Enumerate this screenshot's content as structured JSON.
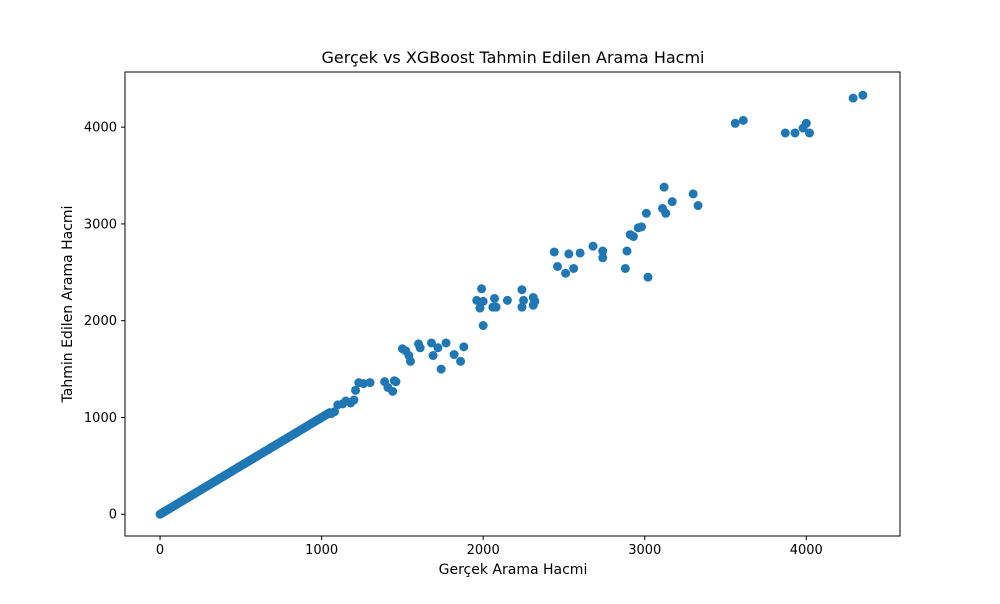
{
  "chart_data": {
    "type": "scatter",
    "title": "Gerçek vs XGBoost Tahmin Edilen Arama Hacmi",
    "xlabel": "Gerçek Arama Hacmi",
    "ylabel": "Tahmin Edilen Arama Hacmi",
    "xlim": [
      -217,
      4580
    ],
    "ylim": [
      -225,
      4570
    ],
    "xticks": [
      0,
      1000,
      2000,
      3000,
      4000
    ],
    "yticks": [
      0,
      1000,
      2000,
      3000,
      4000
    ],
    "xtick_labels": [
      "0",
      "1000",
      "2000",
      "3000",
      "4000"
    ],
    "ytick_labels": [
      "0",
      "1000",
      "2000",
      "3000",
      "4000"
    ],
    "grid": false,
    "legend": "none",
    "marker_color": "#1f77b4",
    "series": [
      {
        "x": [
          0,
          10,
          20,
          30,
          40,
          50,
          60,
          70,
          80,
          90,
          100,
          110,
          120,
          130,
          140,
          150,
          160,
          170,
          180,
          190,
          200,
          210,
          220,
          230,
          240,
          250,
          260,
          270,
          280,
          290,
          300,
          310,
          320,
          330,
          340,
          350,
          360,
          370,
          380,
          390,
          400,
          410,
          420,
          430,
          440,
          450,
          460,
          470,
          480,
          490,
          500,
          510,
          520,
          530,
          540,
          550,
          560,
          570,
          580,
          590,
          600,
          610,
          620,
          630,
          640,
          650,
          660,
          670,
          680,
          690,
          700,
          710,
          720,
          730,
          740,
          750,
          760,
          770,
          780,
          790,
          800,
          810,
          820,
          830,
          840,
          850,
          860,
          870,
          880,
          890,
          900,
          910,
          920,
          930,
          940,
          950,
          960,
          970,
          980,
          990,
          1000,
          1010,
          1020,
          1030,
          1040,
          1050,
          1060,
          1080,
          1100,
          1130,
          1150,
          1180,
          1200,
          1210,
          1230,
          1260,
          1300,
          1390,
          1410,
          1440,
          1450,
          1460,
          1500,
          1520,
          1540,
          1550,
          1600,
          1610,
          1680,
          1690,
          1720,
          1740,
          1770,
          1820,
          1860,
          1880,
          1960,
          1980,
          1990,
          2000,
          2000,
          2060,
          2070,
          2080,
          2150,
          2240,
          2240,
          2250,
          2310,
          2310,
          2320,
          2440,
          2460,
          2510,
          2530,
          2560,
          2600,
          2680,
          2740,
          2740,
          2880,
          2890,
          2910,
          2930,
          2960,
          2980,
          3010,
          3020,
          3110,
          3120,
          3130,
          3170,
          3300,
          3330,
          3560,
          3610,
          3870,
          3930,
          3980,
          4000,
          4020,
          4290,
          4350
        ],
        "y": [
          0,
          10,
          20,
          30,
          40,
          50,
          60,
          70,
          80,
          90,
          100,
          110,
          120,
          130,
          140,
          150,
          160,
          170,
          180,
          190,
          200,
          210,
          220,
          230,
          240,
          250,
          260,
          270,
          280,
          290,
          300,
          310,
          320,
          330,
          340,
          350,
          360,
          370,
          380,
          390,
          400,
          410,
          420,
          430,
          440,
          450,
          460,
          470,
          480,
          490,
          500,
          510,
          520,
          530,
          540,
          550,
          560,
          570,
          580,
          590,
          600,
          610,
          620,
          630,
          640,
          650,
          660,
          670,
          680,
          690,
          700,
          710,
          720,
          730,
          740,
          750,
          760,
          770,
          780,
          790,
          800,
          810,
          820,
          830,
          840,
          850,
          860,
          870,
          880,
          890,
          900,
          910,
          920,
          930,
          940,
          950,
          960,
          970,
          980,
          990,
          1000,
          1010,
          1020,
          1030,
          1040,
          1050,
          1040,
          1060,
          1130,
          1140,
          1170,
          1150,
          1180,
          1280,
          1360,
          1350,
          1360,
          1370,
          1310,
          1270,
          1380,
          1370,
          1710,
          1690,
          1640,
          1580,
          1760,
          1720,
          1770,
          1640,
          1720,
          1500,
          1770,
          1650,
          1580,
          1730,
          2210,
          2130,
          2330,
          1950,
          2200,
          2140,
          2230,
          2140,
          2210,
          2320,
          2140,
          2210,
          2240,
          2160,
          2200,
          2710,
          2560,
          2490,
          2690,
          2540,
          2700,
          2770,
          2720,
          2650,
          2540,
          2720,
          2890,
          2870,
          2960,
          2970,
          3110,
          2450,
          3160,
          3380,
          3110,
          3230,
          3310,
          3190,
          4040,
          4070,
          3940,
          3940,
          3990,
          4040,
          3940,
          4300,
          4330
        ]
      }
    ]
  }
}
